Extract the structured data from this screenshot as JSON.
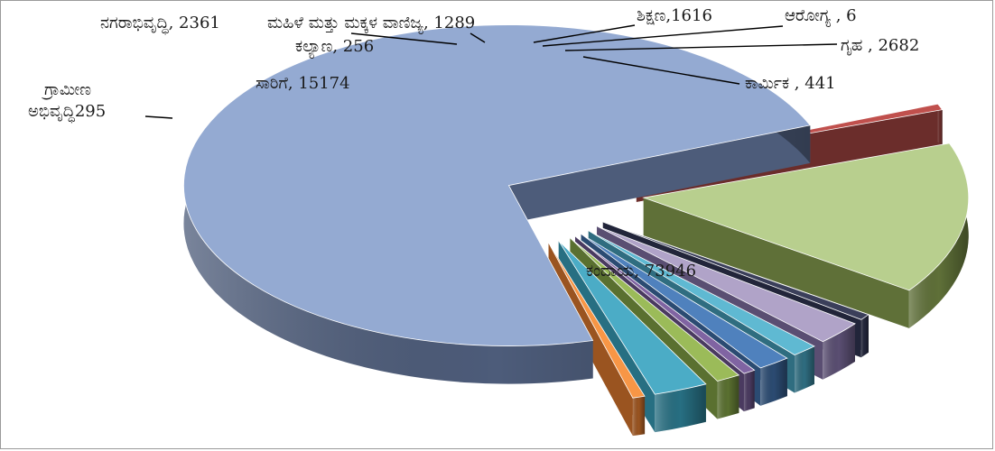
{
  "chart_data": {
    "type": "pie",
    "title": "",
    "slices": [
      {
        "label": "ಕಂದಾಯ",
        "value": 73946,
        "color": "#94aad2",
        "side": "#4d5c7a"
      },
      {
        "label": "ಗ್ರಾಮೀಣ ಅಭಿವೃದ್ಧಿ",
        "value": 295,
        "color": "#c0504d",
        "side": "#6b2d2b"
      },
      {
        "label": "ಸಾರಿಗೆ",
        "value": 15174,
        "color": "#b8cf8e",
        "side": "#5f7038"
      },
      {
        "label": "ಕಲ್ಯಾಣ",
        "value": 256,
        "color": "#3b3f5a",
        "side": "#22253a"
      },
      {
        "label": "ನಗರಾಭಿವೃದ್ಧಿ",
        "value": 2361,
        "color": "#b0a3c8",
        "side": "#5a4e72"
      },
      {
        "label": "ಮಹಿಳೆ ಮತ್ತು ಮಕ್ಕಳ ವಾಣಿಜ್ಯ",
        "value": 1289,
        "color": "#5fb9d2",
        "side": "#2f6d80"
      },
      {
        "label": "ಶಿಕ್ಷಣ",
        "value": 1616,
        "color": "#4f81bd",
        "side": "#2b4b72"
      },
      {
        "label": "ಆರೋಗ್ಯ",
        "value": 6,
        "color": "#8064a2",
        "side": "#4a3a60"
      },
      {
        "label": "",
        "value": 1200,
        "color": "#9bbb59",
        "side": "#5a7030"
      },
      {
        "label": "ಗೃಹ",
        "value": 2682,
        "color": "#4bacc6",
        "side": "#276f82"
      },
      {
        "label": "ಕಾರ್ಮಿಕ",
        "value": 441,
        "color": "#f79646",
        "side": "#9a5420"
      }
    ],
    "label_texts": [
      {
        "text": "ಕಂದಾಯ, 73946"
      },
      {
        "text": "ಗ್ರಾಮೀಣ"
      },
      {
        "text": "ಅಭಿವೃದ್ಧಿ295"
      },
      {
        "text": "ಸಾರಿಗೆ, 15174"
      },
      {
        "text": "ಕಲ್ಯಾಣ, 256"
      },
      {
        "text": "ನಗರಾಭಿವೃದ್ಧಿ, 2361"
      },
      {
        "text": "ಮಹಿಳೆ ಮತ್ತು ಮಕ್ಕಳ ವಾಣಿಜ್ಯ, 1289"
      },
      {
        "text": "ಶಿಕ್ಷಣ,1616"
      },
      {
        "text": "ಆರೋಗ್ಯ , 6"
      },
      {
        "text": "ಗೃಹ , 2682"
      },
      {
        "text": "ಕಾರ್ಮಿಕ , 441"
      }
    ]
  }
}
